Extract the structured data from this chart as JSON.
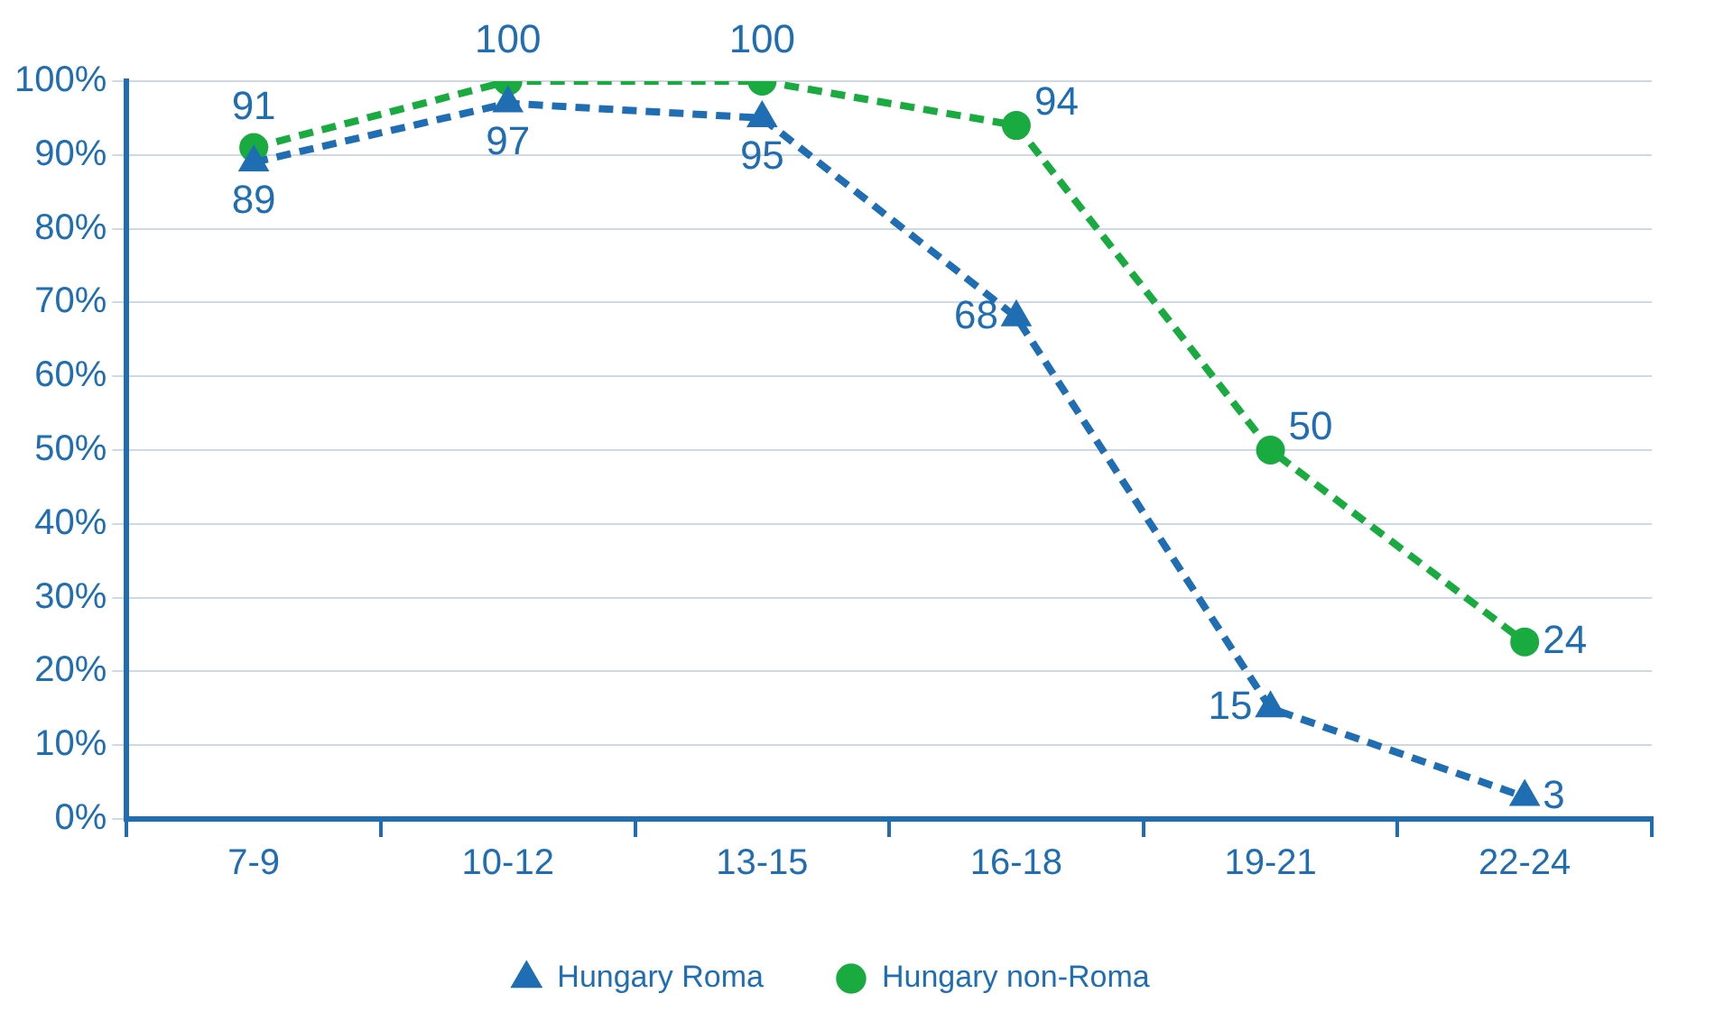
{
  "chart_data": {
    "type": "line",
    "categories": [
      "7-9",
      "10-12",
      "13-15",
      "16-18",
      "19-21",
      "22-24"
    ],
    "series": [
      {
        "name": "Hungary Roma",
        "color": "#1f6db3",
        "marker": "triangle",
        "values": [
          89,
          97,
          95,
          68,
          15,
          3
        ]
      },
      {
        "name": "Hungary non-Roma",
        "color": "#1aab40",
        "marker": "circle",
        "values": [
          91,
          100,
          100,
          94,
          50,
          24
        ]
      }
    ],
    "ylim": [
      0,
      100
    ],
    "yticks": [
      {
        "value": 0,
        "label": "0%"
      },
      {
        "value": 10,
        "label": "10%"
      },
      {
        "value": 20,
        "label": "20%"
      },
      {
        "value": 30,
        "label": "30%"
      },
      {
        "value": 40,
        "label": "40%"
      },
      {
        "value": 50,
        "label": "50%"
      },
      {
        "value": 60,
        "label": "60%"
      },
      {
        "value": 70,
        "label": "70%"
      },
      {
        "value": 80,
        "label": "80%"
      },
      {
        "value": 90,
        "label": "90%"
      },
      {
        "value": 100,
        "label": "100%"
      }
    ],
    "grid": "y",
    "legend": "bottom",
    "line_style": "dashed",
    "data_labels": true
  }
}
